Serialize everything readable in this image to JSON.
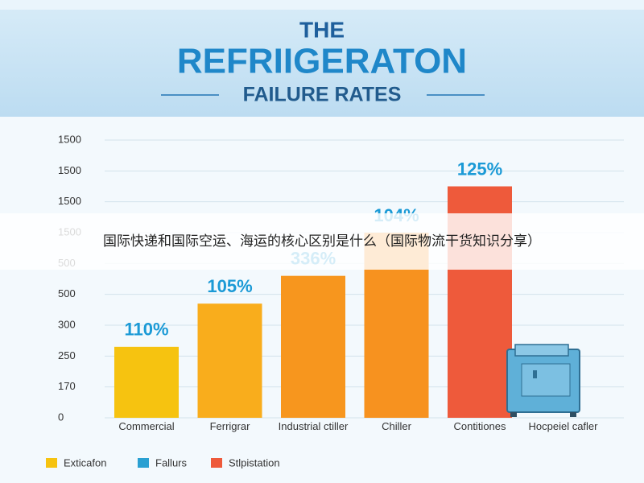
{
  "chart_data": {
    "type": "bar",
    "title": [
      "THE",
      "REFRIIGERATON",
      "FAILURE RATES"
    ],
    "categories": [
      "Commercial",
      "Ferrigrar",
      "Industrial ctiller",
      "Chiller",
      "Contitiones",
      "Hocpeiel cafler"
    ],
    "values": [
      2.3,
      3.7,
      4.6,
      6.0,
      7.5,
      null
    ],
    "bar_labels": [
      "110%",
      "105%",
      "336%",
      "104%",
      "125%",
      null
    ],
    "colors": [
      "#f6c310",
      "#f9ad1c",
      "#f7961e",
      "#f7921f",
      "#ee5a3b",
      null
    ],
    "ylim": [
      0,
      9
    ],
    "yticks": [
      {
        "value": 0,
        "label": "0"
      },
      {
        "value": 1,
        "label": "170"
      },
      {
        "value": 2,
        "label": "250"
      },
      {
        "value": 3,
        "label": "300"
      },
      {
        "value": 4,
        "label": "500"
      },
      {
        "value": 5,
        "label": "500"
      },
      {
        "value": 6,
        "label": "1500"
      },
      {
        "value": 7,
        "label": "1500"
      },
      {
        "value": 8,
        "label": "1500"
      },
      {
        "value": 9,
        "label": "1500"
      }
    ],
    "grid": true,
    "legend": [
      {
        "name": "Exticafon",
        "color": "#f6c310"
      },
      {
        "name": "Fallurs",
        "color": "#2aa0d2"
      },
      {
        "name": "Stlpistation",
        "color": "#ee5a3b"
      }
    ],
    "overlay_text": "国际快递和国际空运、海运的核心区别是什么（国际物流干货知识分享）"
  }
}
